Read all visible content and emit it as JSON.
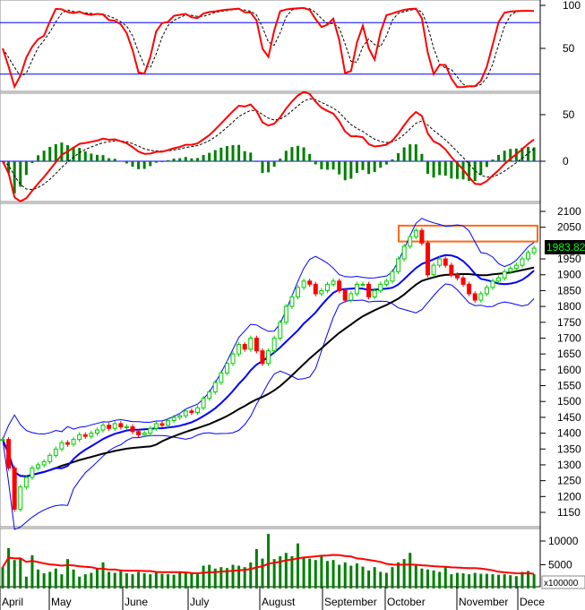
{
  "chart_data": {
    "type": "candlestick",
    "panels": [
      "stochastic",
      "macd",
      "price",
      "volume"
    ],
    "x_tick_labels": [
      "April",
      "May",
      "June",
      "July",
      "August",
      "September",
      "October",
      "November",
      "Dece"
    ],
    "stochastic": {
      "y_ticks": [
        "100",
        "50"
      ],
      "ylim": [
        0,
        100
      ],
      "reference_lines": [
        80,
        20
      ]
    },
    "macd": {
      "y_ticks": [
        "50",
        "0"
      ],
      "ylim": [
        -45,
        70
      ]
    },
    "price": {
      "y_ticks": [
        "2100",
        "2050",
        "1950",
        "1900",
        "1850",
        "1800",
        "1750",
        "1700",
        "1650",
        "1600",
        "1550",
        "1500",
        "1450",
        "1400",
        "1350",
        "1300",
        "1250",
        "1200",
        "1150"
      ],
      "ylim": [
        1120,
        2120
      ],
      "last_price_label": "1983.82",
      "highlight_box": {
        "price_range": [
          2005,
          2055
        ],
        "color": "#ff6a13"
      },
      "close": [
        1380,
        1290,
        1160,
        1230,
        1260,
        1290,
        1300,
        1310,
        1330,
        1350,
        1370,
        1365,
        1380,
        1395,
        1390,
        1400,
        1410,
        1425,
        1415,
        1430,
        1420,
        1420,
        1405,
        1395,
        1400,
        1415,
        1430,
        1425,
        1440,
        1450,
        1455,
        1470,
        1465,
        1480,
        1510,
        1530,
        1560,
        1590,
        1620,
        1650,
        1680,
        1665,
        1700,
        1660,
        1620,
        1660,
        1700,
        1750,
        1800,
        1830,
        1860,
        1880,
        1870,
        1840,
        1850,
        1870,
        1880,
        1850,
        1820,
        1840,
        1870,
        1870,
        1830,
        1850,
        1870,
        1880,
        1910,
        1950,
        1990,
        2020,
        2040,
        2000,
        1900,
        1930,
        1950,
        1930,
        1900,
        1890,
        1870,
        1840,
        1820,
        1840,
        1860,
        1880,
        1890,
        1910,
        1920,
        1930,
        1950,
        1970,
        1983.82
      ]
    },
    "volume": {
      "y_ticks": [
        "10000",
        "5000"
      ],
      "unit_label": "x100000",
      "ylim": [
        0,
        12500
      ],
      "values": [
        4500,
        8500,
        6000,
        6500,
        2500,
        7000,
        4000,
        3200,
        3500,
        4200,
        3000,
        6200,
        4000,
        2500,
        3000,
        3300,
        4200,
        5500,
        3500,
        3300,
        3800,
        3200,
        3000,
        3500,
        3200,
        3000,
        3300,
        3100,
        3000,
        2900,
        3400,
        3300,
        3200,
        3000,
        4800,
        5000,
        4200,
        4500,
        4300,
        5000,
        4800,
        4500,
        5500,
        8300,
        6300,
        11500,
        6200,
        6800,
        7500,
        6800,
        9500,
        6500,
        6300,
        6000,
        7000,
        5800,
        6000,
        5000,
        5500,
        4800,
        5300,
        4600,
        3800,
        4500,
        3500,
        3300,
        4500,
        5500,
        6200,
        7500,
        5000,
        4200,
        4000,
        3800,
        3500,
        4500,
        3000,
        3300,
        3200,
        3000,
        3300,
        3100,
        3100,
        3000,
        2900,
        3000,
        2800,
        2600,
        3500,
        3700,
        3000
      ],
      "ma_color": "#ff0000",
      "bar_color": "#008000"
    },
    "colors": {
      "up": "#00cc00",
      "down": "#ff0000",
      "ma_short": "#0000ff",
      "ma_long": "#000000",
      "bands": "#0000ff",
      "signal_line": "#ff0000"
    }
  }
}
